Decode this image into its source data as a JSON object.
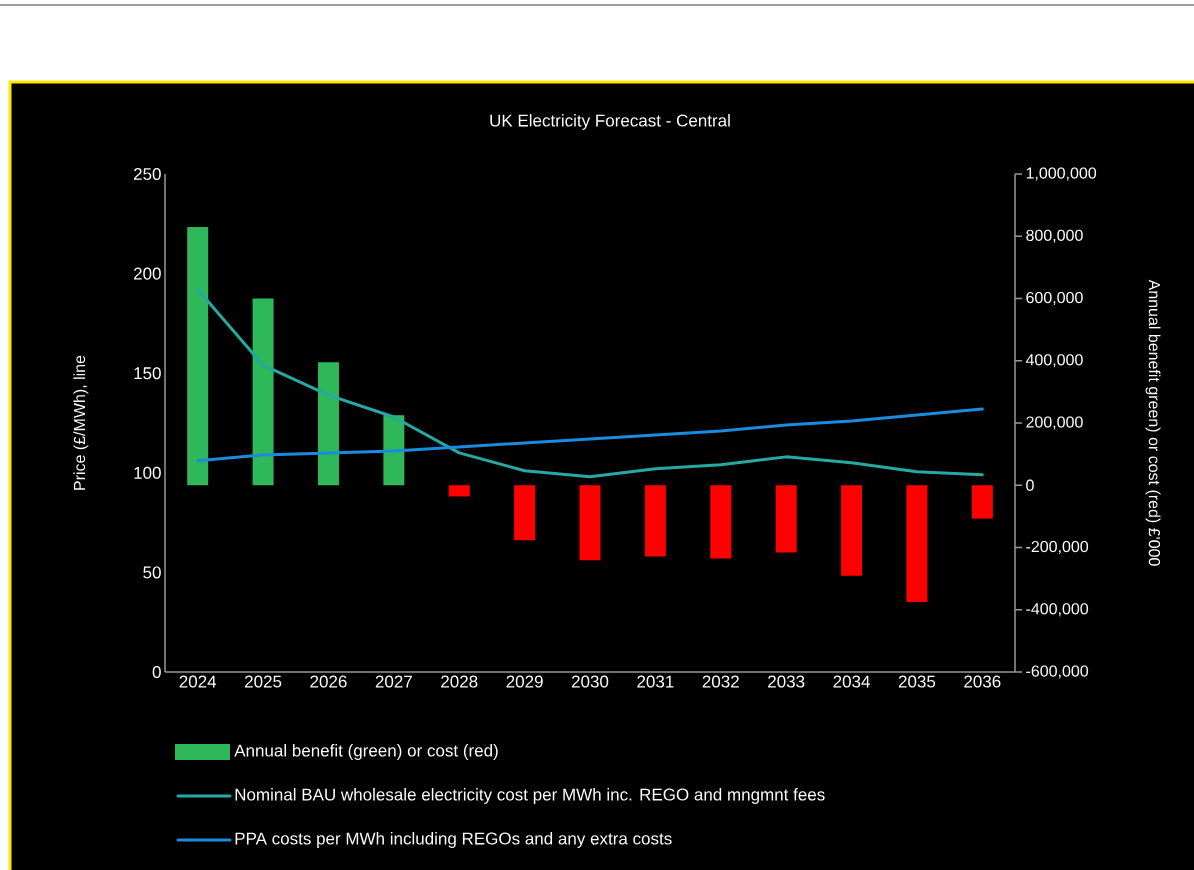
{
  "chart_data": {
    "type": "bar",
    "title": "UK Electricity Forecast - Central",
    "ylabel": "Price (£/MWh), line",
    "y2label": "Annual benefit green) or cost (red) £'000",
    "categories": [
      "2024",
      "2025",
      "2026",
      "2027",
      "2028",
      "2029",
      "2030",
      "2031",
      "2032",
      "2033",
      "2034",
      "2035",
      "2036"
    ],
    "series": [
      {
        "name": "Annual benefit (green) or cost (red)",
        "axis": "y2",
        "colors": [
          "#2eb85a",
          "#2eb85a",
          "#2eb85a",
          "#2eb85a",
          "#ff0000",
          "#ff0000",
          "#ff0000",
          "#ff0000",
          "#ff0000",
          "#ff0000",
          "#ff0000",
          "#ff0000",
          "#ff0000"
        ],
        "values": [
          830000,
          600000,
          395000,
          225000,
          -36000,
          -177000,
          -241000,
          -229000,
          -235000,
          -216000,
          -291000,
          -375000,
          -107000
        ]
      },
      {
        "name": "Nominal BAU wholesale electricity cost per MWh inc. REGO and mngmnt fees",
        "type": "line",
        "color": "#25aaa3",
        "values": [
          192,
          154,
          139,
          128,
          110,
          101,
          98,
          102,
          104,
          108,
          105,
          100.5,
          99
        ]
      },
      {
        "name": "PPA costs per MWh including REGOs and any extra costs",
        "type": "line",
        "color": "#1a8ce0",
        "values": [
          106,
          109,
          110,
          111,
          113,
          115,
          117,
          119,
          121,
          124,
          126,
          129,
          132
        ]
      }
    ],
    "ylim": [
      0,
      250
    ],
    "yticks": [
      0,
      50,
      100,
      150,
      200,
      250
    ],
    "y2lim": [
      -600000,
      1000000
    ],
    "y2ticks": [
      {
        "value": -600000,
        "label": "-600,000"
      },
      {
        "value": -400000,
        "label": "-400,000"
      },
      {
        "value": -200000,
        "label": "-200,000"
      },
      0,
      {
        "value": 200000,
        "label": "200,000"
      },
      {
        "value": 400000,
        "label": "400,000"
      },
      {
        "value": 600000,
        "label": "600,000"
      },
      {
        "value": 800000,
        "label": "800,000"
      },
      {
        "value": 1000000,
        "label": "1,000,000"
      }
    ],
    "legend": "bottom"
  }
}
